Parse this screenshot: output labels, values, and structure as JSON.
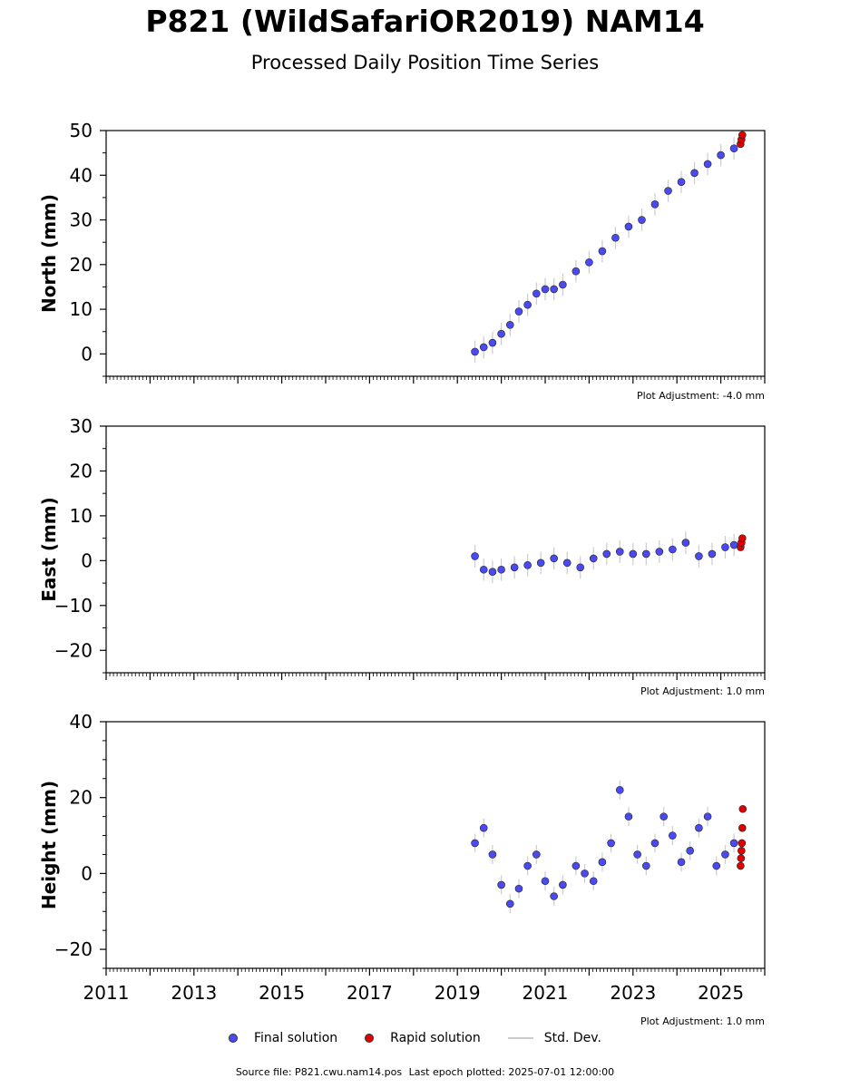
{
  "title": "P821 (WildSafariOR2019) NAM14",
  "subtitle": "Processed Daily Position Time Series",
  "legend": {
    "final": {
      "label": "Final solution",
      "color": "#4a4af0"
    },
    "rapid": {
      "label": "Rapid solution",
      "color": "#e00000"
    },
    "std": {
      "label": "Std. Dev.",
      "color": "#cccccc"
    }
  },
  "footer": {
    "source": "Source file: P821.cwu.nam14.pos",
    "last_epoch": "Last epoch plotted: 2025-07-01 12:00:00"
  },
  "chart_data": [
    {
      "type": "scatter",
      "ylabel": "North (mm)",
      "ylim": [
        -5,
        50
      ],
      "yticks": [
        0,
        10,
        20,
        30,
        40,
        50
      ],
      "xlim": [
        2011,
        2026
      ],
      "adjustment": "Plot Adjustment: -4.0 mm",
      "series": [
        {
          "name": "Final solution",
          "color": "#4a4af0",
          "x": [
            2019.4,
            2019.6,
            2019.8,
            2020.0,
            2020.2,
            2020.4,
            2020.6,
            2020.8,
            2021.0,
            2021.2,
            2021.4,
            2021.7,
            2022.0,
            2022.3,
            2022.6,
            2022.9,
            2023.2,
            2023.5,
            2023.8,
            2024.1,
            2024.4,
            2024.7,
            2025.0,
            2025.3
          ],
          "y": [
            0.5,
            1.5,
            2.5,
            4.5,
            6.5,
            9.5,
            11.0,
            13.5,
            14.5,
            14.5,
            15.5,
            18.5,
            20.5,
            23.0,
            26.0,
            28.5,
            30.0,
            33.5,
            36.5,
            38.5,
            40.5,
            42.5,
            44.5,
            46.0
          ]
        },
        {
          "name": "Rapid solution",
          "color": "#e00000",
          "x": [
            2025.45,
            2025.47,
            2025.49
          ],
          "y": [
            47.0,
            48.0,
            49.0
          ]
        }
      ]
    },
    {
      "type": "scatter",
      "ylabel": "East (mm)",
      "ylim": [
        -25,
        30
      ],
      "yticks": [
        -20,
        -10,
        0,
        10,
        20,
        30
      ],
      "xlim": [
        2011,
        2026
      ],
      "adjustment": "Plot Adjustment: 1.0 mm",
      "series": [
        {
          "name": "Final solution",
          "color": "#4a4af0",
          "x": [
            2019.4,
            2019.6,
            2019.8,
            2020.0,
            2020.3,
            2020.6,
            2020.9,
            2021.2,
            2021.5,
            2021.8,
            2022.1,
            2022.4,
            2022.7,
            2023.0,
            2023.3,
            2023.6,
            2023.9,
            2024.2,
            2024.5,
            2024.8,
            2025.1,
            2025.3
          ],
          "y": [
            1.0,
            -2.0,
            -2.5,
            -2.0,
            -1.5,
            -1.0,
            -0.5,
            0.5,
            -0.5,
            -1.5,
            0.5,
            1.5,
            2.0,
            1.5,
            1.5,
            2.0,
            2.5,
            4.0,
            1.0,
            1.5,
            3.0,
            3.5
          ]
        },
        {
          "name": "Rapid solution",
          "color": "#e00000",
          "x": [
            2025.45,
            2025.47,
            2025.49
          ],
          "y": [
            3.0,
            4.0,
            5.0
          ]
        }
      ]
    },
    {
      "type": "scatter",
      "ylabel": "Height (mm)",
      "ylim": [
        -25,
        40
      ],
      "yticks": [
        -20,
        0,
        20,
        40
      ],
      "xlim": [
        2011,
        2026
      ],
      "xticks": [
        2011,
        2013,
        2015,
        2017,
        2019,
        2021,
        2023,
        2025
      ],
      "adjustment": "Plot Adjustment: 1.0 mm",
      "series": [
        {
          "name": "Final solution",
          "color": "#4a4af0",
          "x": [
            2019.4,
            2019.6,
            2019.8,
            2020.0,
            2020.2,
            2020.4,
            2020.6,
            2020.8,
            2021.0,
            2021.2,
            2021.4,
            2021.7,
            2021.9,
            2022.1,
            2022.3,
            2022.5,
            2022.7,
            2022.9,
            2023.1,
            2023.3,
            2023.5,
            2023.7,
            2023.9,
            2024.1,
            2024.3,
            2024.5,
            2024.7,
            2024.9,
            2025.1,
            2025.3
          ],
          "y": [
            8,
            12,
            5,
            -3,
            -8,
            -4,
            2,
            5,
            -2,
            -6,
            -3,
            2,
            0,
            -2,
            3,
            8,
            22,
            15,
            5,
            2,
            8,
            15,
            10,
            3,
            6,
            12,
            15,
            2,
            5,
            8
          ]
        },
        {
          "name": "Rapid solution",
          "color": "#e00000",
          "x": [
            2025.45,
            2025.46,
            2025.47,
            2025.48,
            2025.49,
            2025.5
          ],
          "y": [
            2,
            4,
            6,
            8,
            12,
            17
          ]
        }
      ]
    }
  ]
}
